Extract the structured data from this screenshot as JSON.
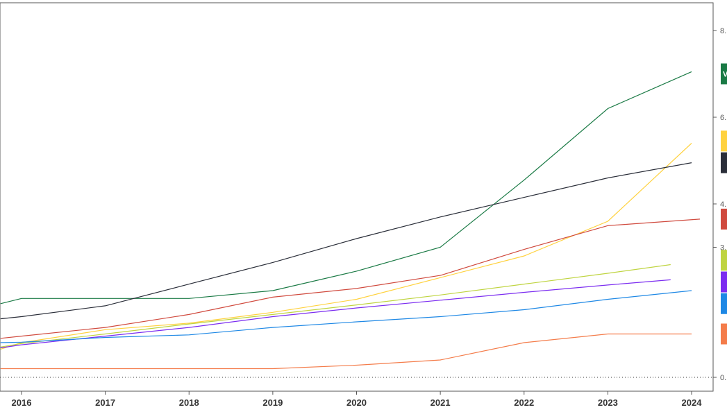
{
  "chart_data": {
    "type": "line",
    "title": "",
    "xlabel": "",
    "ylabel": "",
    "grid": false,
    "x_tick_labels": [
      "2016",
      "2017",
      "2018",
      "2019",
      "2020",
      "2021",
      "2022",
      "2023",
      "2024"
    ],
    "y_tick_labels": [
      "8.",
      "6.",
      "4.",
      "3.",
      "0."
    ],
    "y_tick_values": [
      8,
      6,
      4,
      3,
      0
    ],
    "xlim": [
      2015.75,
      2024.25
    ],
    "ylim": [
      0,
      8.0
    ],
    "series": [
      {
        "name": "",
        "badge": "V",
        "color": "#1a7a45",
        "points": [
          [
            2015.75,
            1.7
          ],
          [
            2016.0,
            1.82
          ],
          [
            2017.0,
            1.82
          ],
          [
            2018.0,
            1.82
          ],
          [
            2019.0,
            2.0
          ],
          [
            2020.0,
            2.45
          ],
          [
            2021.0,
            3.0
          ],
          [
            2022.0,
            4.55
          ],
          [
            2023.0,
            6.2
          ],
          [
            2024.0,
            7.05
          ]
        ]
      },
      {
        "name": "",
        "badge": "",
        "color": "#ffd23f",
        "points": [
          [
            2015.75,
            0.65
          ],
          [
            2016.0,
            0.8
          ],
          [
            2017.0,
            1.1
          ],
          [
            2018.0,
            1.25
          ],
          [
            2019.0,
            1.5
          ],
          [
            2020.0,
            1.8
          ],
          [
            2021.0,
            2.3
          ],
          [
            2022.0,
            2.8
          ],
          [
            2023.0,
            3.6
          ],
          [
            2024.0,
            5.4
          ]
        ]
      },
      {
        "name": "",
        "badge": "",
        "color": "#2a2e39",
        "points": [
          [
            2015.75,
            1.35
          ],
          [
            2016.0,
            1.4
          ],
          [
            2017.0,
            1.65
          ],
          [
            2018.0,
            2.15
          ],
          [
            2019.0,
            2.65
          ],
          [
            2020.0,
            3.2
          ],
          [
            2021.0,
            3.7
          ],
          [
            2022.0,
            4.15
          ],
          [
            2023.0,
            4.6
          ],
          [
            2024.0,
            4.95
          ]
        ]
      },
      {
        "name": "",
        "badge": "",
        "color": "#d04a3e",
        "points": [
          [
            2015.75,
            0.9
          ],
          [
            2016.0,
            0.95
          ],
          [
            2017.0,
            1.15
          ],
          [
            2018.0,
            1.45
          ],
          [
            2019.0,
            1.85
          ],
          [
            2020.0,
            2.05
          ],
          [
            2021.0,
            2.35
          ],
          [
            2022.0,
            2.95
          ],
          [
            2023.0,
            3.5
          ],
          [
            2024.1,
            3.65
          ]
        ]
      },
      {
        "name": "",
        "badge": "",
        "color": "#bfd440",
        "points": [
          [
            2015.75,
            0.7
          ],
          [
            2016.0,
            0.78
          ],
          [
            2017.0,
            1.0
          ],
          [
            2018.0,
            1.23
          ],
          [
            2019.0,
            1.45
          ],
          [
            2020.0,
            1.67
          ],
          [
            2021.0,
            1.9
          ],
          [
            2022.0,
            2.15
          ],
          [
            2023.0,
            2.4
          ],
          [
            2023.75,
            2.6
          ]
        ]
      },
      {
        "name": "",
        "badge": "",
        "color": "#7b2cf0",
        "points": [
          [
            2015.75,
            0.68
          ],
          [
            2016.0,
            0.75
          ],
          [
            2017.0,
            0.95
          ],
          [
            2018.0,
            1.15
          ],
          [
            2019.0,
            1.4
          ],
          [
            2020.0,
            1.6
          ],
          [
            2021.0,
            1.78
          ],
          [
            2022.0,
            1.96
          ],
          [
            2023.0,
            2.13
          ],
          [
            2023.75,
            2.25
          ]
        ]
      },
      {
        "name": "",
        "badge": "",
        "color": "#1e88e5",
        "points": [
          [
            2015.75,
            0.8
          ],
          [
            2016.0,
            0.81
          ],
          [
            2017.0,
            0.92
          ],
          [
            2018.0,
            0.98
          ],
          [
            2019.0,
            1.15
          ],
          [
            2020.0,
            1.28
          ],
          [
            2021.0,
            1.4
          ],
          [
            2022.0,
            1.56
          ],
          [
            2023.0,
            1.8
          ],
          [
            2024.0,
            2.0
          ]
        ]
      },
      {
        "name": "",
        "badge": "",
        "color": "#f47c4a",
        "points": [
          [
            2015.75,
            0.2
          ],
          [
            2016.0,
            0.2
          ],
          [
            2017.0,
            0.2
          ],
          [
            2018.0,
            0.2
          ],
          [
            2019.0,
            0.2
          ],
          [
            2020.0,
            0.28
          ],
          [
            2021.0,
            0.4
          ],
          [
            2022.0,
            0.8
          ],
          [
            2023.0,
            1.0
          ],
          [
            2024.0,
            1.0
          ]
        ]
      }
    ],
    "badges": [
      {
        "text": "V",
        "color": "#1a7a45",
        "text_color": "#ffffff",
        "value": 7.0
      },
      {
        "text": "",
        "color": "#ffd23f",
        "text_color": "#000000",
        "value": 5.45
      },
      {
        "text": "",
        "color": "#2a2e39",
        "text_color": "#ffffff",
        "value": 4.95
      },
      {
        "text": "",
        "color": "#d04a3e",
        "text_color": "#ffffff",
        "value": 3.65
      },
      {
        "text": "",
        "color": "#bfd440",
        "text_color": "#000000",
        "value": 2.7
      },
      {
        "text": "",
        "color": "#7b2cf0",
        "text_color": "#ffffff",
        "value": 2.2
      },
      {
        "text": "",
        "color": "#1e88e5",
        "text_color": "#ffffff",
        "value": 1.7
      },
      {
        "text": "",
        "color": "#f47c4a",
        "text_color": "#ffffff",
        "value": 1.0
      }
    ],
    "dotted_baseline_value": 0
  }
}
